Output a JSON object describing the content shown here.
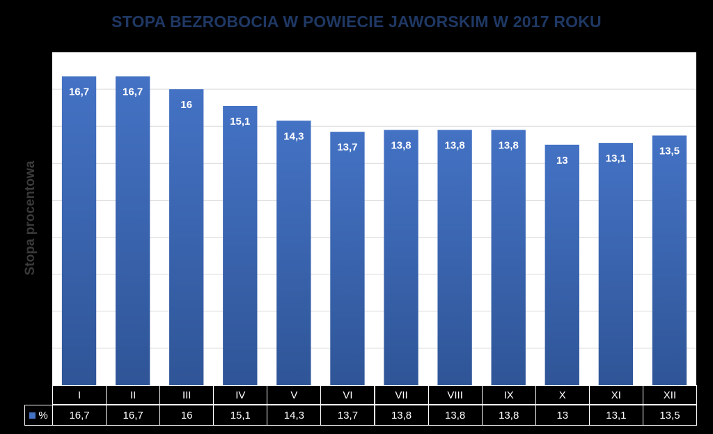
{
  "chart_data": {
    "type": "bar",
    "title": "STOPA BEZROBOCIA W  POWIECIE JAWORSKIM W 2017 ROKU",
    "xlabel": "",
    "ylabel": "Stopa procentowa",
    "categories": [
      "I",
      "II",
      "III",
      "IV",
      "V",
      "VI",
      "VII",
      "VIII",
      "IX",
      "X",
      "XI",
      "XII"
    ],
    "series": [
      {
        "name": "%",
        "values": [
          16.7,
          16.7,
          16,
          15.1,
          14.3,
          13.7,
          13.8,
          13.8,
          13.8,
          13,
          13.1,
          13.5
        ],
        "labels": [
          "16,7",
          "16,7",
          "16",
          "15,1",
          "14,3",
          "13,7",
          "13,8",
          "13,8",
          "13,8",
          "13",
          "13,1",
          "13,5"
        ]
      }
    ],
    "ylim": [
      0,
      18
    ],
    "gridline_step": 2,
    "grid": true,
    "data_table": true,
    "bar_color": "#4472c4",
    "title_color": "#1f3864",
    "background": "#000000",
    "plot_background": "#ffffff"
  }
}
